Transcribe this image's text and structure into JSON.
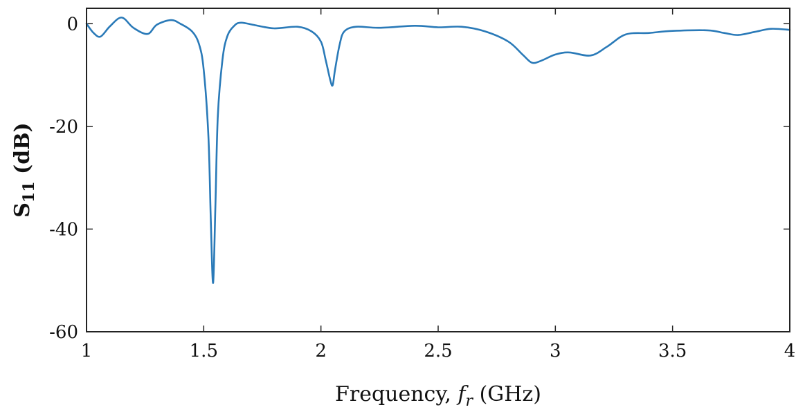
{
  "chart_data": {
    "type": "line",
    "title": "",
    "xlabel": "Frequency, f_r (GHz)",
    "xlabel_parts": {
      "main": "Frequency, ",
      "symbol": "f",
      "subscript": "r",
      "unit": " (GHz)"
    },
    "ylabel": "S11 (dB)",
    "ylabel_parts": {
      "symbol": "S",
      "subscript": "11",
      "unit": " (dB)"
    },
    "xlim": [
      1,
      4
    ],
    "ylim": [
      -60,
      3
    ],
    "xticks": [
      1,
      1.5,
      2,
      2.5,
      3,
      3.5,
      4
    ],
    "xtick_labels": [
      "1",
      "1.5",
      "2",
      "2.5",
      "3",
      "3.5",
      "4"
    ],
    "yticks": [
      0,
      -20,
      -40,
      -60
    ],
    "ytick_labels": [
      "0",
      "-20",
      "-40",
      "-60"
    ],
    "grid": false,
    "legend": "none",
    "series": [
      {
        "color": "#2a7ab8",
        "x": [
          1.0,
          1.03,
          1.06,
          1.1,
          1.15,
          1.2,
          1.26,
          1.3,
          1.36,
          1.4,
          1.45,
          1.48,
          1.5,
          1.52,
          1.53,
          1.54,
          1.55,
          1.56,
          1.58,
          1.6,
          1.63,
          1.66,
          1.72,
          1.8,
          1.9,
          1.96,
          2.0,
          2.02,
          2.04,
          2.05,
          2.06,
          2.08,
          2.1,
          2.15,
          2.25,
          2.4,
          2.5,
          2.6,
          2.7,
          2.8,
          2.86,
          2.9,
          2.94,
          3.0,
          3.06,
          3.15,
          3.22,
          3.3,
          3.4,
          3.5,
          3.65,
          3.72,
          3.78,
          3.85,
          3.92,
          4.0
        ],
        "y": [
          0,
          -1.8,
          -2.5,
          -0.5,
          1.2,
          -0.8,
          -2.0,
          -0.2,
          0.7,
          0,
          -1.5,
          -4,
          -9,
          -22,
          -38,
          -50.5,
          -35,
          -18,
          -7,
          -2.5,
          -0.4,
          0.2,
          -0.3,
          -0.9,
          -0.6,
          -1.5,
          -3.5,
          -7,
          -11,
          -12,
          -9,
          -4,
          -1.5,
          -0.6,
          -0.8,
          -0.4,
          -0.7,
          -0.6,
          -1.5,
          -3.5,
          -6,
          -7.6,
          -7.2,
          -6.0,
          -5.6,
          -6.2,
          -4.5,
          -2.1,
          -1.8,
          -1.4,
          -1.3,
          -1.8,
          -2.2,
          -1.6,
          -1.0,
          -1.2
        ]
      }
    ]
  }
}
